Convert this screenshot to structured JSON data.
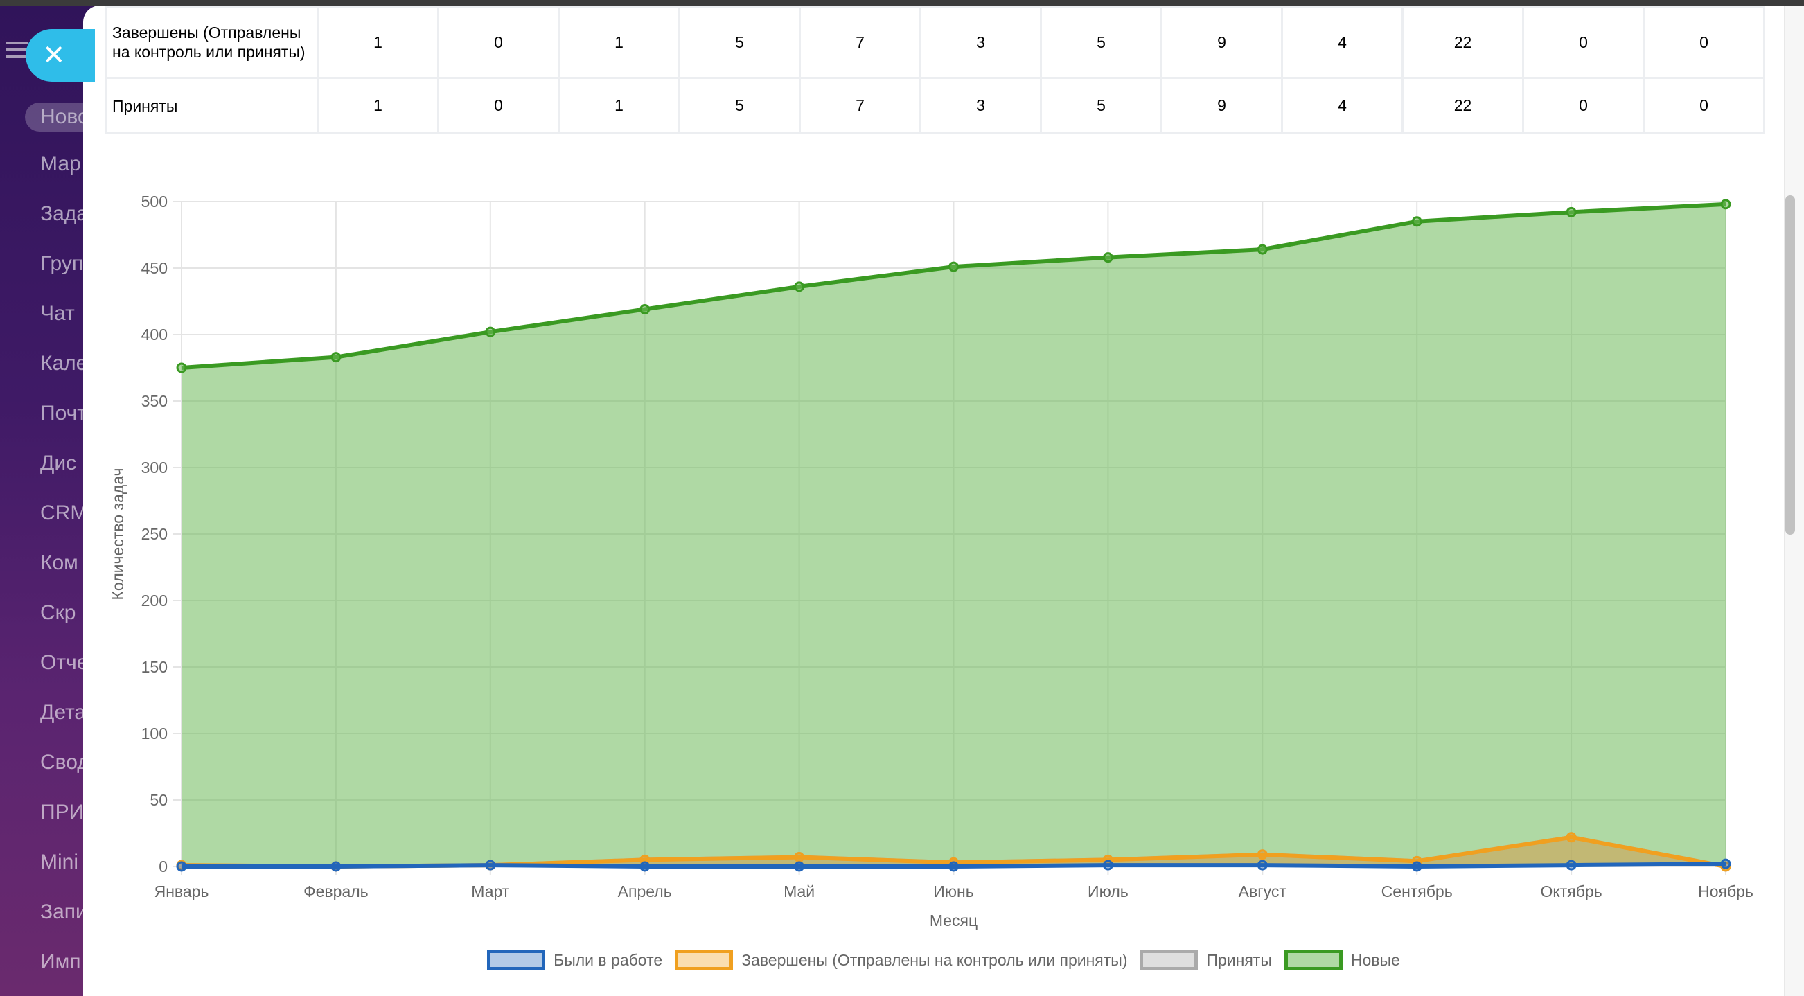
{
  "sidebar": {
    "items": [
      "Ново",
      "Мар",
      "Зада",
      "Груп",
      "Чат",
      "Кале",
      "Почт",
      "Дис",
      "CRM",
      "Ком",
      "Скр",
      "Отче",
      "Дета",
      "Свод",
      "ПРИ",
      "Mini",
      "Запи",
      "Имп"
    ]
  },
  "close_label": "✕",
  "table": {
    "rows": [
      {
        "label": "Завершены (Отправлены на контроль или приняты)",
        "values": [
          "1",
          "0",
          "1",
          "5",
          "7",
          "3",
          "5",
          "9",
          "4",
          "22",
          "0",
          "0"
        ]
      },
      {
        "label": "Приняты",
        "values": [
          "1",
          "0",
          "1",
          "5",
          "7",
          "3",
          "5",
          "9",
          "4",
          "22",
          "0",
          "0"
        ]
      }
    ]
  },
  "chart_data": {
    "type": "area",
    "categories": [
      "Январь",
      "Февраль",
      "Март",
      "Апрель",
      "Май",
      "Июнь",
      "Июль",
      "Август",
      "Сентябрь",
      "Октябрь",
      "Ноябрь"
    ],
    "xlabel": "Месяц",
    "ylabel": "Количество задач",
    "ylim": [
      0,
      500
    ],
    "yticks": [
      0,
      50,
      100,
      150,
      200,
      250,
      300,
      350,
      400,
      450,
      500
    ],
    "grid": true,
    "legend": "bottom",
    "series": [
      {
        "name": "Были в работе",
        "color": "#2266bb",
        "fill": "rgba(34,102,187,0.35)",
        "values": [
          0,
          0,
          1,
          0,
          0,
          0,
          1,
          1,
          0,
          1,
          2
        ]
      },
      {
        "name": "Завершены (Отправлены на контроль или приняты)",
        "color": "#f0a020",
        "fill": "rgba(240,160,32,0.35)",
        "values": [
          1,
          0,
          1,
          5,
          7,
          3,
          5,
          9,
          4,
          22,
          0
        ]
      },
      {
        "name": "Приняты",
        "color": "#aaaaaa",
        "fill": "rgba(160,160,160,0.35)",
        "values": [
          1,
          0,
          1,
          5,
          7,
          3,
          5,
          9,
          4,
          22,
          0
        ]
      },
      {
        "name": "Новые",
        "color": "#3a9a22",
        "fill": "rgba(110,185,90,0.55)",
        "values": [
          375,
          383,
          402,
          419,
          436,
          451,
          458,
          464,
          485,
          492,
          498
        ]
      }
    ]
  }
}
